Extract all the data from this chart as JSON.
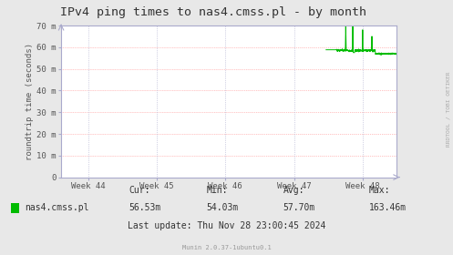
{
  "title": "IPv4 ping times to nas4.cmss.pl - by month",
  "ylabel": "roundtrip time (seconds)",
  "background_color": "#e8e8e8",
  "plot_bg_color": "#ffffff",
  "grid_color_h": "#ff8888",
  "grid_color_v": "#aaaacc",
  "line_color": "#00bb00",
  "ylim": [
    0,
    70
  ],
  "ytick_labels": [
    "0",
    "10 m",
    "20 m",
    "30 m",
    "40 m",
    "50 m",
    "60 m",
    "70 m"
  ],
  "ytick_values": [
    0,
    10,
    20,
    30,
    40,
    50,
    60,
    70
  ],
  "xtick_labels": [
    "Week 44",
    "Week 45",
    "Week 46",
    "Week 47",
    "Week 48"
  ],
  "legend_label": "nas4.cmss.pl",
  "cur": "56.53m",
  "min_val": "54.03m",
  "avg": "57.70m",
  "max_val": "163.46m",
  "last_update": "Last update: Thu Nov 28 23:00:45 2024",
  "munin_version": "Munin 2.0.37-1ubuntu0.1",
  "rrdtool_label": "RRDTOOL / TOBI OETIKER",
  "title_fontsize": 9.5,
  "axis_label_fontsize": 6.5,
  "tick_fontsize": 6.5,
  "legend_fontsize": 7,
  "stats_fontsize": 7
}
